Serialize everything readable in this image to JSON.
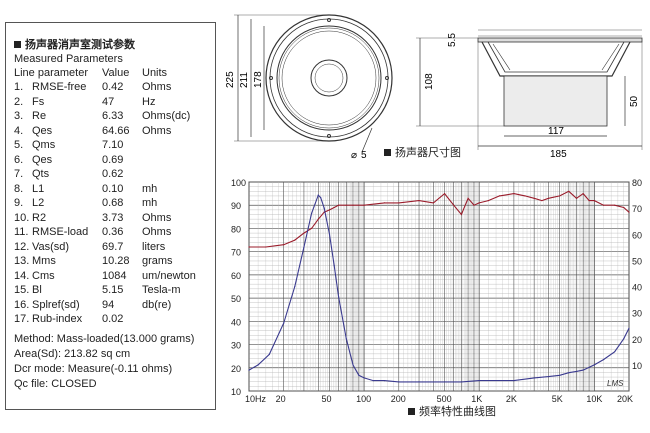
{
  "params": {
    "title": "扬声器消声室测试参数",
    "heading": "Measured Parameters",
    "columns": [
      "Line parameter",
      "Value",
      "Units"
    ],
    "rows": [
      [
        "1.",
        "RMSE-free",
        "0.42",
        "Ohms"
      ],
      [
        "2.",
        "Fs",
        "47",
        "Hz"
      ],
      [
        "3.",
        "Re",
        "6.33",
        "Ohms(dc)"
      ],
      [
        "4.",
        "Qes",
        "64.66",
        "Ohms"
      ],
      [
        "5.",
        "Qms",
        "7.10",
        ""
      ],
      [
        "6.",
        "Qes",
        "0.69",
        ""
      ],
      [
        "7.",
        "Qts",
        "0.62",
        ""
      ],
      [
        "8.",
        "L1",
        "0.10",
        "mh"
      ],
      [
        "9.",
        "L2",
        "0.68",
        "mh"
      ],
      [
        "10.",
        "R2",
        "3.73",
        "Ohms"
      ],
      [
        "11.",
        "RMSE-load",
        "0.36",
        "Ohms"
      ],
      [
        "12.",
        "Vas(sd)",
        "69.7",
        "liters"
      ],
      [
        "13.",
        "Mms",
        "10.28",
        "grams"
      ],
      [
        "14.",
        "Cms",
        "1084",
        "um/newton"
      ],
      [
        "15.",
        "Bl",
        "5.15",
        "Tesla-m"
      ],
      [
        "16.",
        "Splref(sd)",
        "94",
        "db(re)"
      ],
      [
        "17.",
        "Rub-index",
        "0.02",
        ""
      ]
    ],
    "method": "Method:   Mass-loaded(13.000 grams)",
    "area": "Area(Sd):   213.82 sq cm",
    "dcr": "Dcr mode:   Measure(-0.11 ohms)",
    "qc": "Qc file:   CLOSED"
  },
  "drawing": {
    "front_dims": [
      "225",
      "211",
      "178"
    ],
    "hole": "5",
    "side_dims": [
      "5.5",
      "108",
      "50",
      "117",
      "185"
    ],
    "label": "扬声器尺寸图"
  },
  "response": {
    "label": "频率特性曲线图",
    "signature": "LMS",
    "left_ticks": [
      "100",
      "90",
      "80",
      "70",
      "60",
      "50",
      "40",
      "30",
      "20",
      "10"
    ],
    "right_ticks": [
      "80",
      "70",
      "60",
      "50",
      "40",
      "30",
      "20",
      "10"
    ],
    "x_ticks": [
      "10Hz",
      "20",
      "50",
      "100",
      "200",
      "500",
      "1K",
      "2K",
      "5K",
      "10K",
      "20K"
    ],
    "spl_color": "#9a1b2a",
    "imp_color": "#3a3a8f"
  },
  "chart_data": {
    "type": "line",
    "xscale": "log",
    "xlim": [
      10,
      20000
    ],
    "ylim": [
      10,
      100
    ],
    "y2lim": [
      0,
      80
    ],
    "series": [
      {
        "axis": "left",
        "color": "#9a1b2a",
        "x": [
          10,
          14,
          20,
          25,
          30,
          35,
          40,
          45,
          50,
          55,
          60,
          70,
          80,
          100,
          150,
          200,
          300,
          400,
          500,
          600,
          700,
          800,
          900,
          1000,
          1200,
          1500,
          2000,
          2500,
          3000,
          3500,
          4000,
          5000,
          6000,
          7000,
          8000,
          9000,
          10000,
          12000,
          15000,
          18000,
          20000
        ],
        "y": [
          72,
          72,
          73,
          75,
          78,
          80,
          84,
          87,
          88,
          89,
          90,
          90,
          90,
          90,
          91,
          91,
          92,
          91,
          95,
          90,
          86,
          93,
          90,
          91,
          92,
          94,
          95,
          94,
          93,
          92,
          93,
          94,
          96,
          93,
          95,
          92,
          92,
          90,
          90,
          89,
          87
        ]
      },
      {
        "axis": "right",
        "color": "#3a3a8f",
        "x": [
          10,
          12,
          15,
          20,
          25,
          30,
          35,
          40,
          42,
          45,
          50,
          55,
          60,
          70,
          80,
          90,
          100,
          120,
          150,
          200,
          300,
          500,
          700,
          1000,
          2000,
          3000,
          4000,
          5000,
          6000,
          7000,
          8000,
          10000,
          12000,
          15000,
          18000,
          20000
        ],
        "y": [
          8,
          10,
          14,
          26,
          40,
          55,
          68,
          75,
          74,
          70,
          60,
          48,
          36,
          20,
          10,
          6,
          5,
          4,
          4,
          3.5,
          3.5,
          3.5,
          3.5,
          4,
          4,
          5,
          5.5,
          6,
          7,
          7.5,
          8,
          10,
          12,
          15,
          20,
          24
        ]
      }
    ]
  }
}
